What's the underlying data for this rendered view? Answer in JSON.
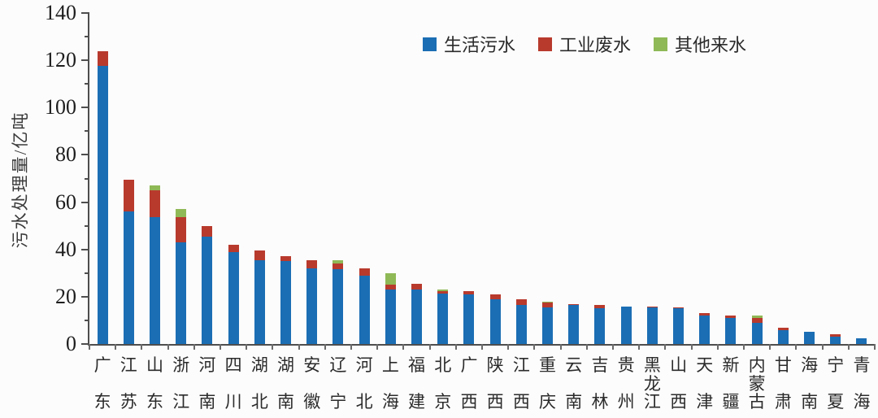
{
  "figure": {
    "background": "#fcfcfc",
    "axis_color": "#4e4e4e",
    "text_color": "#2b2b2b"
  },
  "chart_data": {
    "type": "bar",
    "stacked": true,
    "title": "",
    "xlabel": "",
    "ylabel": "污水处理量/亿吨",
    "ylim": [
      0,
      140
    ],
    "ytick_step": 20,
    "ytick_minor_step": 10,
    "grid": false,
    "legend_position": "top-center",
    "categories": [
      "广东",
      "江苏",
      "山东",
      "浙江",
      "河南",
      "四川",
      "湖北",
      "湖南",
      "安徽",
      "辽宁",
      "河北",
      "上海",
      "福建",
      "北京",
      "广西",
      "陕西",
      "江西",
      "重庆",
      "云南",
      "吉林",
      "贵州",
      "黑龙江",
      "山西",
      "天津",
      "新疆",
      "内蒙古",
      "甘肃",
      "海南",
      "宁夏",
      "青海"
    ],
    "series": [
      {
        "name": "生活污水",
        "color": "#1b6eb4",
        "values": [
          117.5,
          56,
          53.5,
          43,
          45.5,
          39,
          35.5,
          35,
          32,
          31.5,
          29,
          23,
          23,
          21.5,
          21,
          19,
          16.5,
          15.5,
          16.5,
          15,
          16,
          15.5,
          15,
          12,
          11,
          9,
          6,
          5,
          3,
          2.5
        ]
      },
      {
        "name": "工业废水",
        "color": "#b83a2d",
        "values": [
          6.5,
          13.5,
          11.5,
          10.5,
          4.5,
          3,
          4,
          2,
          3.5,
          2.5,
          3,
          2,
          2.5,
          0.7,
          1.5,
          2,
          2.5,
          2,
          0.3,
          1.5,
          0,
          0.5,
          0.5,
          1,
          1,
          2,
          1,
          0,
          1,
          0
        ]
      },
      {
        "name": "其他来水",
        "color": "#8fb956",
        "values": [
          0,
          0,
          2,
          3.5,
          0,
          0,
          0,
          0,
          0,
          1.5,
          0,
          5,
          0,
          0.8,
          0,
          0,
          0,
          0.5,
          0,
          0,
          0,
          0,
          0,
          0,
          0,
          1.2,
          0,
          0,
          0,
          0
        ]
      }
    ]
  }
}
